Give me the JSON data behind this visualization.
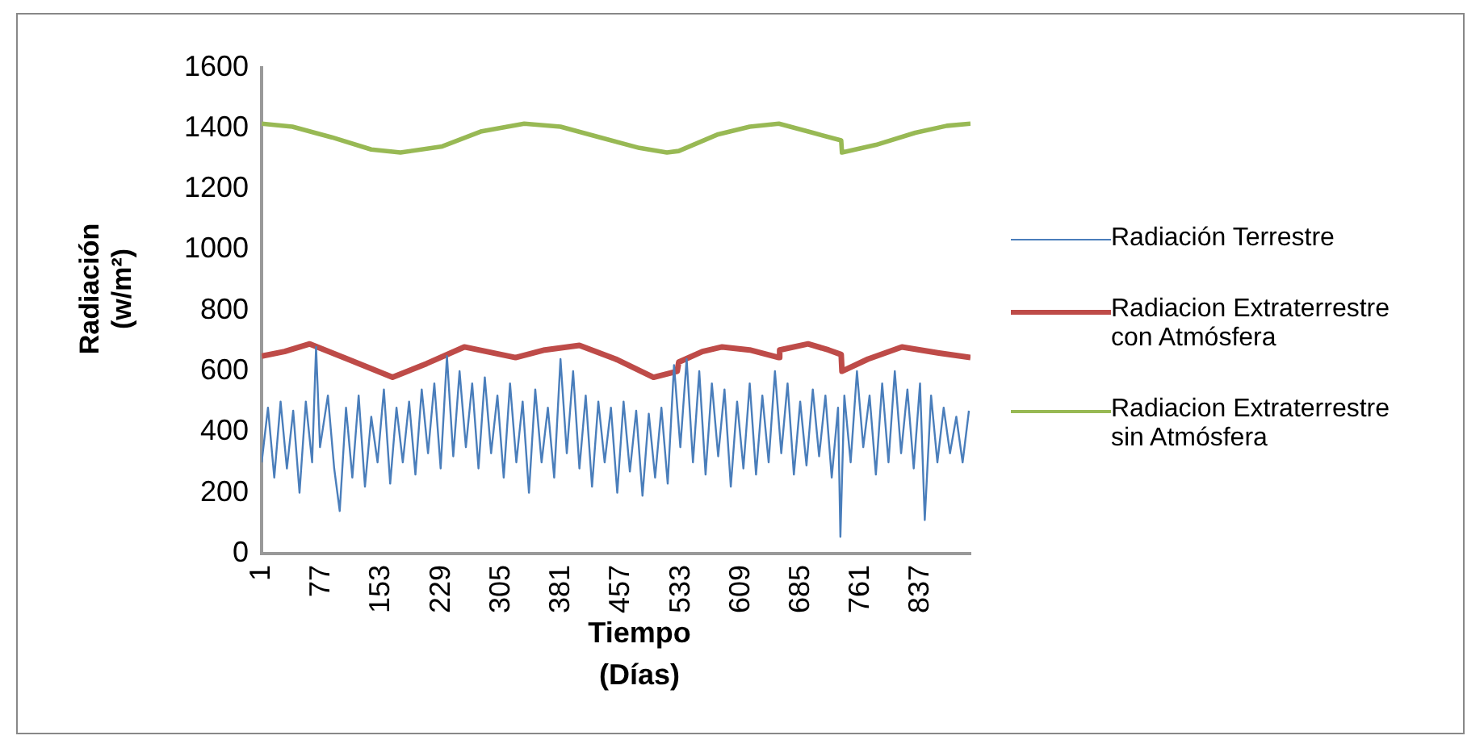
{
  "chart_data": {
    "type": "line",
    "xlabel": "Tiempo (Días)",
    "ylabel": "Radiación (w/m²)",
    "xlim": [
      1,
      900
    ],
    "xticks": [
      1,
      77,
      153,
      229,
      305,
      381,
      457,
      533,
      609,
      685,
      761,
      837
    ],
    "ylim": [
      0,
      1600
    ],
    "yticks": [
      0,
      200,
      400,
      600,
      800,
      1000,
      1200,
      1400,
      1600
    ],
    "grid": false,
    "legend": "right",
    "marker": "none",
    "line_style": "solid",
    "series": [
      {
        "name": "Radiación Terrestre",
        "color": "#4a7ebb",
        "x": [
          1,
          9,
          17,
          25,
          33,
          41,
          49,
          57,
          65,
          70,
          75,
          85,
          93,
          100,
          108,
          116,
          124,
          132,
          140,
          148,
          156,
          164,
          172,
          180,
          188,
          196,
          204,
          212,
          220,
          228,
          236,
          244,
          252,
          260,
          268,
          276,
          284,
          292,
          300,
          308,
          316,
          324,
          332,
          340,
          348,
          356,
          364,
          372,
          380,
          388,
          396,
          404,
          412,
          420,
          428,
          436,
          444,
          452,
          460,
          468,
          476,
          484,
          492,
          500,
          508,
          516,
          524,
          532,
          540,
          548,
          556,
          564,
          572,
          580,
          588,
          596,
          604,
          612,
          620,
          628,
          636,
          644,
          652,
          660,
          668,
          676,
          684,
          692,
          700,
          708,
          716,
          724,
          732,
          735,
          740,
          748,
          756,
          764,
          772,
          780,
          788,
          796,
          804,
          812,
          820,
          828,
          836,
          842,
          850,
          858,
          866,
          874,
          882,
          890,
          898
        ],
        "values": [
          300,
          480,
          250,
          500,
          280,
          470,
          200,
          500,
          300,
          680,
          350,
          520,
          280,
          140,
          480,
          250,
          520,
          220,
          450,
          300,
          540,
          230,
          480,
          300,
          500,
          260,
          540,
          330,
          560,
          280,
          650,
          320,
          600,
          350,
          560,
          280,
          580,
          330,
          520,
          250,
          560,
          300,
          500,
          200,
          540,
          300,
          480,
          250,
          640,
          330,
          600,
          280,
          520,
          220,
          500,
          300,
          480,
          200,
          500,
          270,
          470,
          190,
          460,
          250,
          480,
          230,
          620,
          350,
          640,
          300,
          600,
          260,
          560,
          320,
          540,
          220,
          500,
          280,
          560,
          260,
          520,
          300,
          600,
          330,
          560,
          260,
          500,
          290,
          540,
          320,
          520,
          250,
          480,
          55,
          520,
          300,
          600,
          350,
          520,
          260,
          560,
          300,
          600,
          330,
          540,
          280,
          560,
          110,
          520,
          300,
          480,
          330,
          450,
          300,
          470
        ]
      },
      {
        "name": "Radiacion Extraterrestre con Atmósfera",
        "color": "#be4b48",
        "x": [
          1,
          30,
          62,
          110,
          167,
          210,
          258,
          323,
          360,
          404,
          450,
          498,
          528,
          530,
          560,
          585,
          620,
          657,
          658,
          694,
          720,
          736,
          737,
          770,
          813,
          860,
          900
        ],
        "values": [
          650,
          665,
          690,
          640,
          580,
          625,
          680,
          645,
          670,
          685,
          640,
          580,
          600,
          630,
          665,
          680,
          670,
          645,
          670,
          690,
          670,
          655,
          600,
          640,
          680,
          660,
          645
        ]
      },
      {
        "name": "Radiacion Extraterrestre sin Atmósfera",
        "color": "#98b954",
        "x": [
          1,
          40,
          90,
          140,
          177,
          230,
          280,
          334,
          380,
          430,
          480,
          515,
          530,
          580,
          620,
          657,
          700,
          736,
          737,
          780,
          830,
          870,
          900
        ],
        "values": [
          1415,
          1405,
          1370,
          1330,
          1320,
          1340,
          1390,
          1415,
          1405,
          1370,
          1335,
          1320,
          1325,
          1380,
          1405,
          1415,
          1385,
          1360,
          1320,
          1345,
          1385,
          1408,
          1415
        ]
      }
    ]
  }
}
